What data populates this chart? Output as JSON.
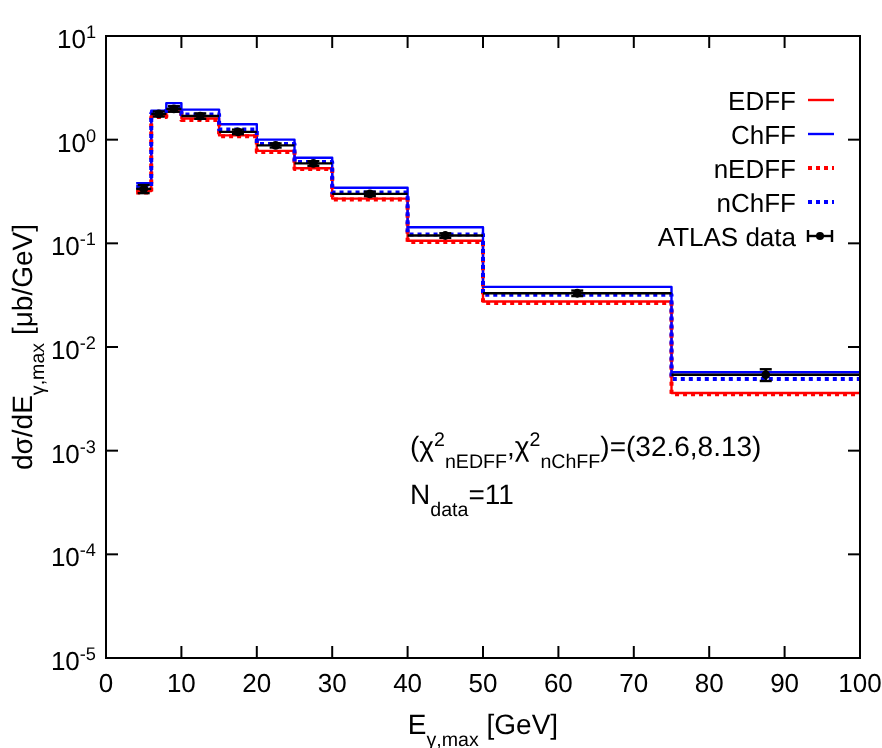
{
  "chart_data": {
    "type": "step",
    "xlabel": "E$_{γ,max}$ [GeV]",
    "ylabel": "dσ/dE$_{γ,max}$ [μb/GeV]",
    "x": [
      4,
      6,
      8,
      10,
      15,
      20,
      25,
      30,
      40,
      50,
      75,
      100
    ],
    "series": [
      {
        "name": "EDFF",
        "color": "#ff0000",
        "line_style": "solid",
        "values": [
          0.32,
          1.7,
          1.95,
          1.6,
          1.1,
          0.78,
          0.53,
          0.27,
          0.106,
          0.0275,
          0.0036,
          0.0036
        ]
      },
      {
        "name": "ChFF",
        "color": "#0000ff",
        "line_style": "solid",
        "values": [
          0.38,
          1.9,
          2.25,
          1.95,
          1.41,
          1.0,
          0.67,
          0.344,
          0.143,
          0.038,
          0.0057,
          0.0057
        ]
      },
      {
        "name": "nEDFF",
        "color": "#ff0000",
        "line_style": "dotted",
        "values": [
          0.31,
          1.65,
          1.9,
          1.55,
          1.08,
          0.76,
          0.52,
          0.265,
          0.103,
          0.0265,
          0.0035,
          0.0035
        ]
      },
      {
        "name": "nChFF",
        "color": "#0000ff",
        "line_style": "dotted",
        "values": [
          0.35,
          1.8,
          2.05,
          1.75,
          1.25,
          0.91,
          0.61,
          0.31,
          0.122,
          0.032,
          0.0049,
          0.0049
        ]
      },
      {
        "name": "ATLAS data",
        "type": "scatter",
        "color": "#000000",
        "marker": "circle",
        "x": [
          5,
          7,
          9,
          12.5,
          17.5,
          22.5,
          27.5,
          35,
          45,
          62.5,
          87.5
        ],
        "values": [
          0.335,
          1.77,
          1.98,
          1.69,
          1.19,
          0.88,
          0.59,
          0.3,
          0.119,
          0.033,
          0.0054
        ],
        "errors": [
          0.03,
          0.1,
          0.12,
          0.1,
          0.06,
          0.04,
          0.03,
          0.015,
          0.006,
          0.002,
          0.0007
        ],
        "xerrors": [
          1,
          1,
          1,
          2.5,
          2.5,
          2.5,
          2.5,
          5,
          5,
          12.5,
          12.5
        ]
      }
    ],
    "log": "y",
    "xlim": [
      0,
      100
    ],
    "xticks": [
      0,
      10,
      20,
      30,
      40,
      50,
      60,
      70,
      80,
      90,
      100
    ],
    "ylim": [
      1e-05,
      10
    ],
    "yticks": [
      {
        "value": 1e-05,
        "label": "10$^{-5}$"
      },
      {
        "value": 0.0001,
        "label": "10$^{-4}$"
      },
      {
        "value": 0.001,
        "label": "10$^{-3}$"
      },
      {
        "value": 0.01,
        "label": "10$^{-2}$"
      },
      {
        "value": 0.1,
        "label": "10$^{-1}$"
      },
      {
        "value": 1,
        "label": "10$^{0}$"
      },
      {
        "value": 10,
        "label": "10$^{1}$"
      }
    ],
    "legend": "top right",
    "grid": false,
    "annotations": [
      "(χ$^{2}$$_{nEDFF}$,χ$^{2}$$_{nChFF}$)=(32.6,8.13)",
      "N$_{data}$=11"
    ]
  }
}
